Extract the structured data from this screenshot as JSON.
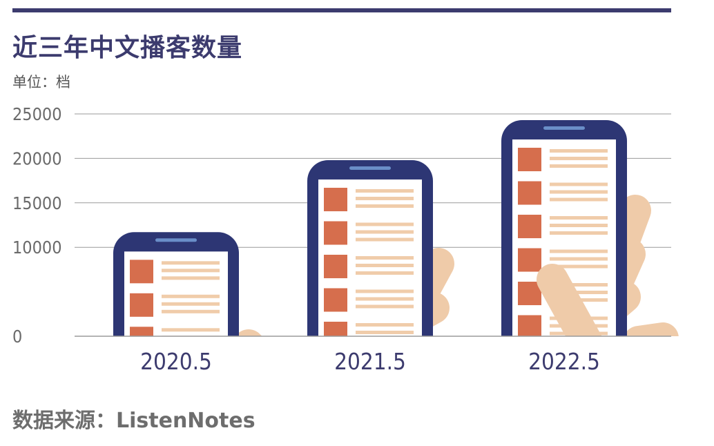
{
  "header": {
    "title": "近三年中文播客数量",
    "unit_label": "单位：档"
  },
  "footer": {
    "source": "数据来源：ListenNotes"
  },
  "colors": {
    "navy": "#2d3674",
    "accent_bar": "#3c3b6e",
    "screen": "#ffffff",
    "icon_square": "#d66e4d",
    "text_line": "#f0ccaa",
    "hand": "#efcba9",
    "speaker": "#6a8ec8",
    "grid": "#9a9a9a"
  },
  "chart_data": {
    "type": "bar",
    "title": "近三年中文播客数量",
    "ylabel": "单位：档",
    "xlabel": "",
    "categories": [
      "2020.5",
      "2021.5",
      "2022.5"
    ],
    "values": [
      11700,
      19800,
      24300
    ],
    "ylim": [
      0,
      25000
    ],
    "yticks": [
      "0",
      "10000",
      "15000",
      "20000",
      "25000"
    ],
    "ytick_values": [
      0,
      10000,
      15000,
      20000,
      25000
    ],
    "grid": true,
    "bar_style": "smartphone-pictogram"
  }
}
